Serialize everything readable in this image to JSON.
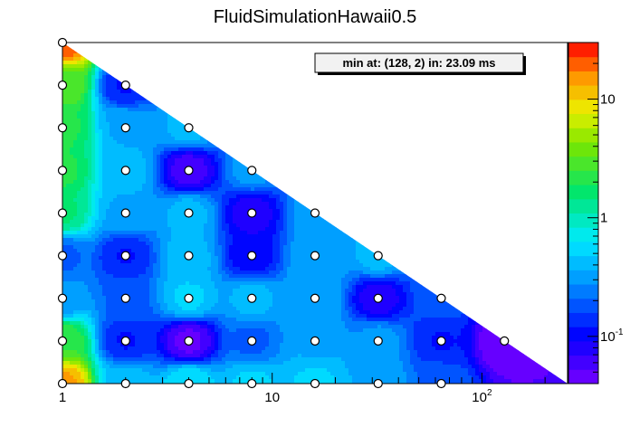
{
  "chart_data": {
    "type": "heatmap",
    "title": "FluidSimulationHawaii0.5",
    "annotation": "min at: (128, 2) in: 23.09 ms",
    "x_scale": "log",
    "y_scale": "linear",
    "z_scale": "log",
    "xlim": [
      1,
      256
    ],
    "ylim": [
      1,
      9
    ],
    "zlim": [
      0.04,
      30
    ],
    "x_ticks": [
      {
        "value": 1,
        "label": "1"
      },
      {
        "value": 10,
        "label": "10"
      },
      {
        "value": 100,
        "label": "10",
        "sup": "2"
      }
    ],
    "z_ticks": [
      {
        "value": 0.1,
        "label": "10",
        "sup": "-1"
      },
      {
        "value": 1,
        "label": "1"
      },
      {
        "value": 10,
        "label": "10"
      }
    ],
    "points": [
      {
        "x": 1,
        "y": 1,
        "z": 14
      },
      {
        "x": 2,
        "y": 1,
        "z": 0.45
      },
      {
        "x": 4,
        "y": 1,
        "z": 0.6
      },
      {
        "x": 8,
        "y": 1,
        "z": 0.5
      },
      {
        "x": 16,
        "y": 1,
        "z": 0.5
      },
      {
        "x": 32,
        "y": 1,
        "z": 0.35
      },
      {
        "x": 64,
        "y": 1,
        "z": 0.2
      },
      {
        "x": 1,
        "y": 2,
        "z": 2.5
      },
      {
        "x": 2,
        "y": 2,
        "z": 0.12
      },
      {
        "x": 4,
        "y": 2,
        "z": 0.05
      },
      {
        "x": 8,
        "y": 2,
        "z": 0.2
      },
      {
        "x": 16,
        "y": 2,
        "z": 0.35
      },
      {
        "x": 32,
        "y": 2,
        "z": 0.3
      },
      {
        "x": 64,
        "y": 2,
        "z": 0.12
      },
      {
        "x": 128,
        "y": 2,
        "z": 0.04
      },
      {
        "x": 1,
        "y": 3,
        "z": 0.3
      },
      {
        "x": 2,
        "y": 3,
        "z": 0.2
      },
      {
        "x": 4,
        "y": 3,
        "z": 0.5
      },
      {
        "x": 8,
        "y": 3,
        "z": 0.4
      },
      {
        "x": 16,
        "y": 3,
        "z": 0.35
      },
      {
        "x": 32,
        "y": 3,
        "z": 0.08
      },
      {
        "x": 64,
        "y": 3,
        "z": 0.2
      },
      {
        "x": 1,
        "y": 4,
        "z": 0.2
      },
      {
        "x": 2,
        "y": 4,
        "z": 0.12
      },
      {
        "x": 4,
        "y": 4,
        "z": 0.4
      },
      {
        "x": 8,
        "y": 4,
        "z": 0.1
      },
      {
        "x": 16,
        "y": 4,
        "z": 0.35
      },
      {
        "x": 32,
        "y": 4,
        "z": 0.4
      },
      {
        "x": 1,
        "y": 5,
        "z": 1.5
      },
      {
        "x": 2,
        "y": 5,
        "z": 0.35
      },
      {
        "x": 4,
        "y": 5,
        "z": 0.4
      },
      {
        "x": 8,
        "y": 5,
        "z": 0.08
      },
      {
        "x": 16,
        "y": 5,
        "z": 0.3
      },
      {
        "x": 1,
        "y": 6,
        "z": 2.0
      },
      {
        "x": 2,
        "y": 6,
        "z": 0.4
      },
      {
        "x": 4,
        "y": 6,
        "z": 0.06
      },
      {
        "x": 8,
        "y": 6,
        "z": 0.3
      },
      {
        "x": 1,
        "y": 7,
        "z": 2.0
      },
      {
        "x": 2,
        "y": 7,
        "z": 0.35
      },
      {
        "x": 4,
        "y": 7,
        "z": 0.4
      },
      {
        "x": 1,
        "y": 8,
        "z": 3.0
      },
      {
        "x": 2,
        "y": 8,
        "z": 0.12
      },
      {
        "x": 1,
        "y": 9,
        "z": 20
      }
    ],
    "grid": false,
    "colors": {
      "marker_fill": "#ffffff",
      "marker_stroke": "#000000",
      "frame": "#000000",
      "annotation_bg": "#f2f2f2",
      "annotation_shadow": "#000000"
    }
  }
}
